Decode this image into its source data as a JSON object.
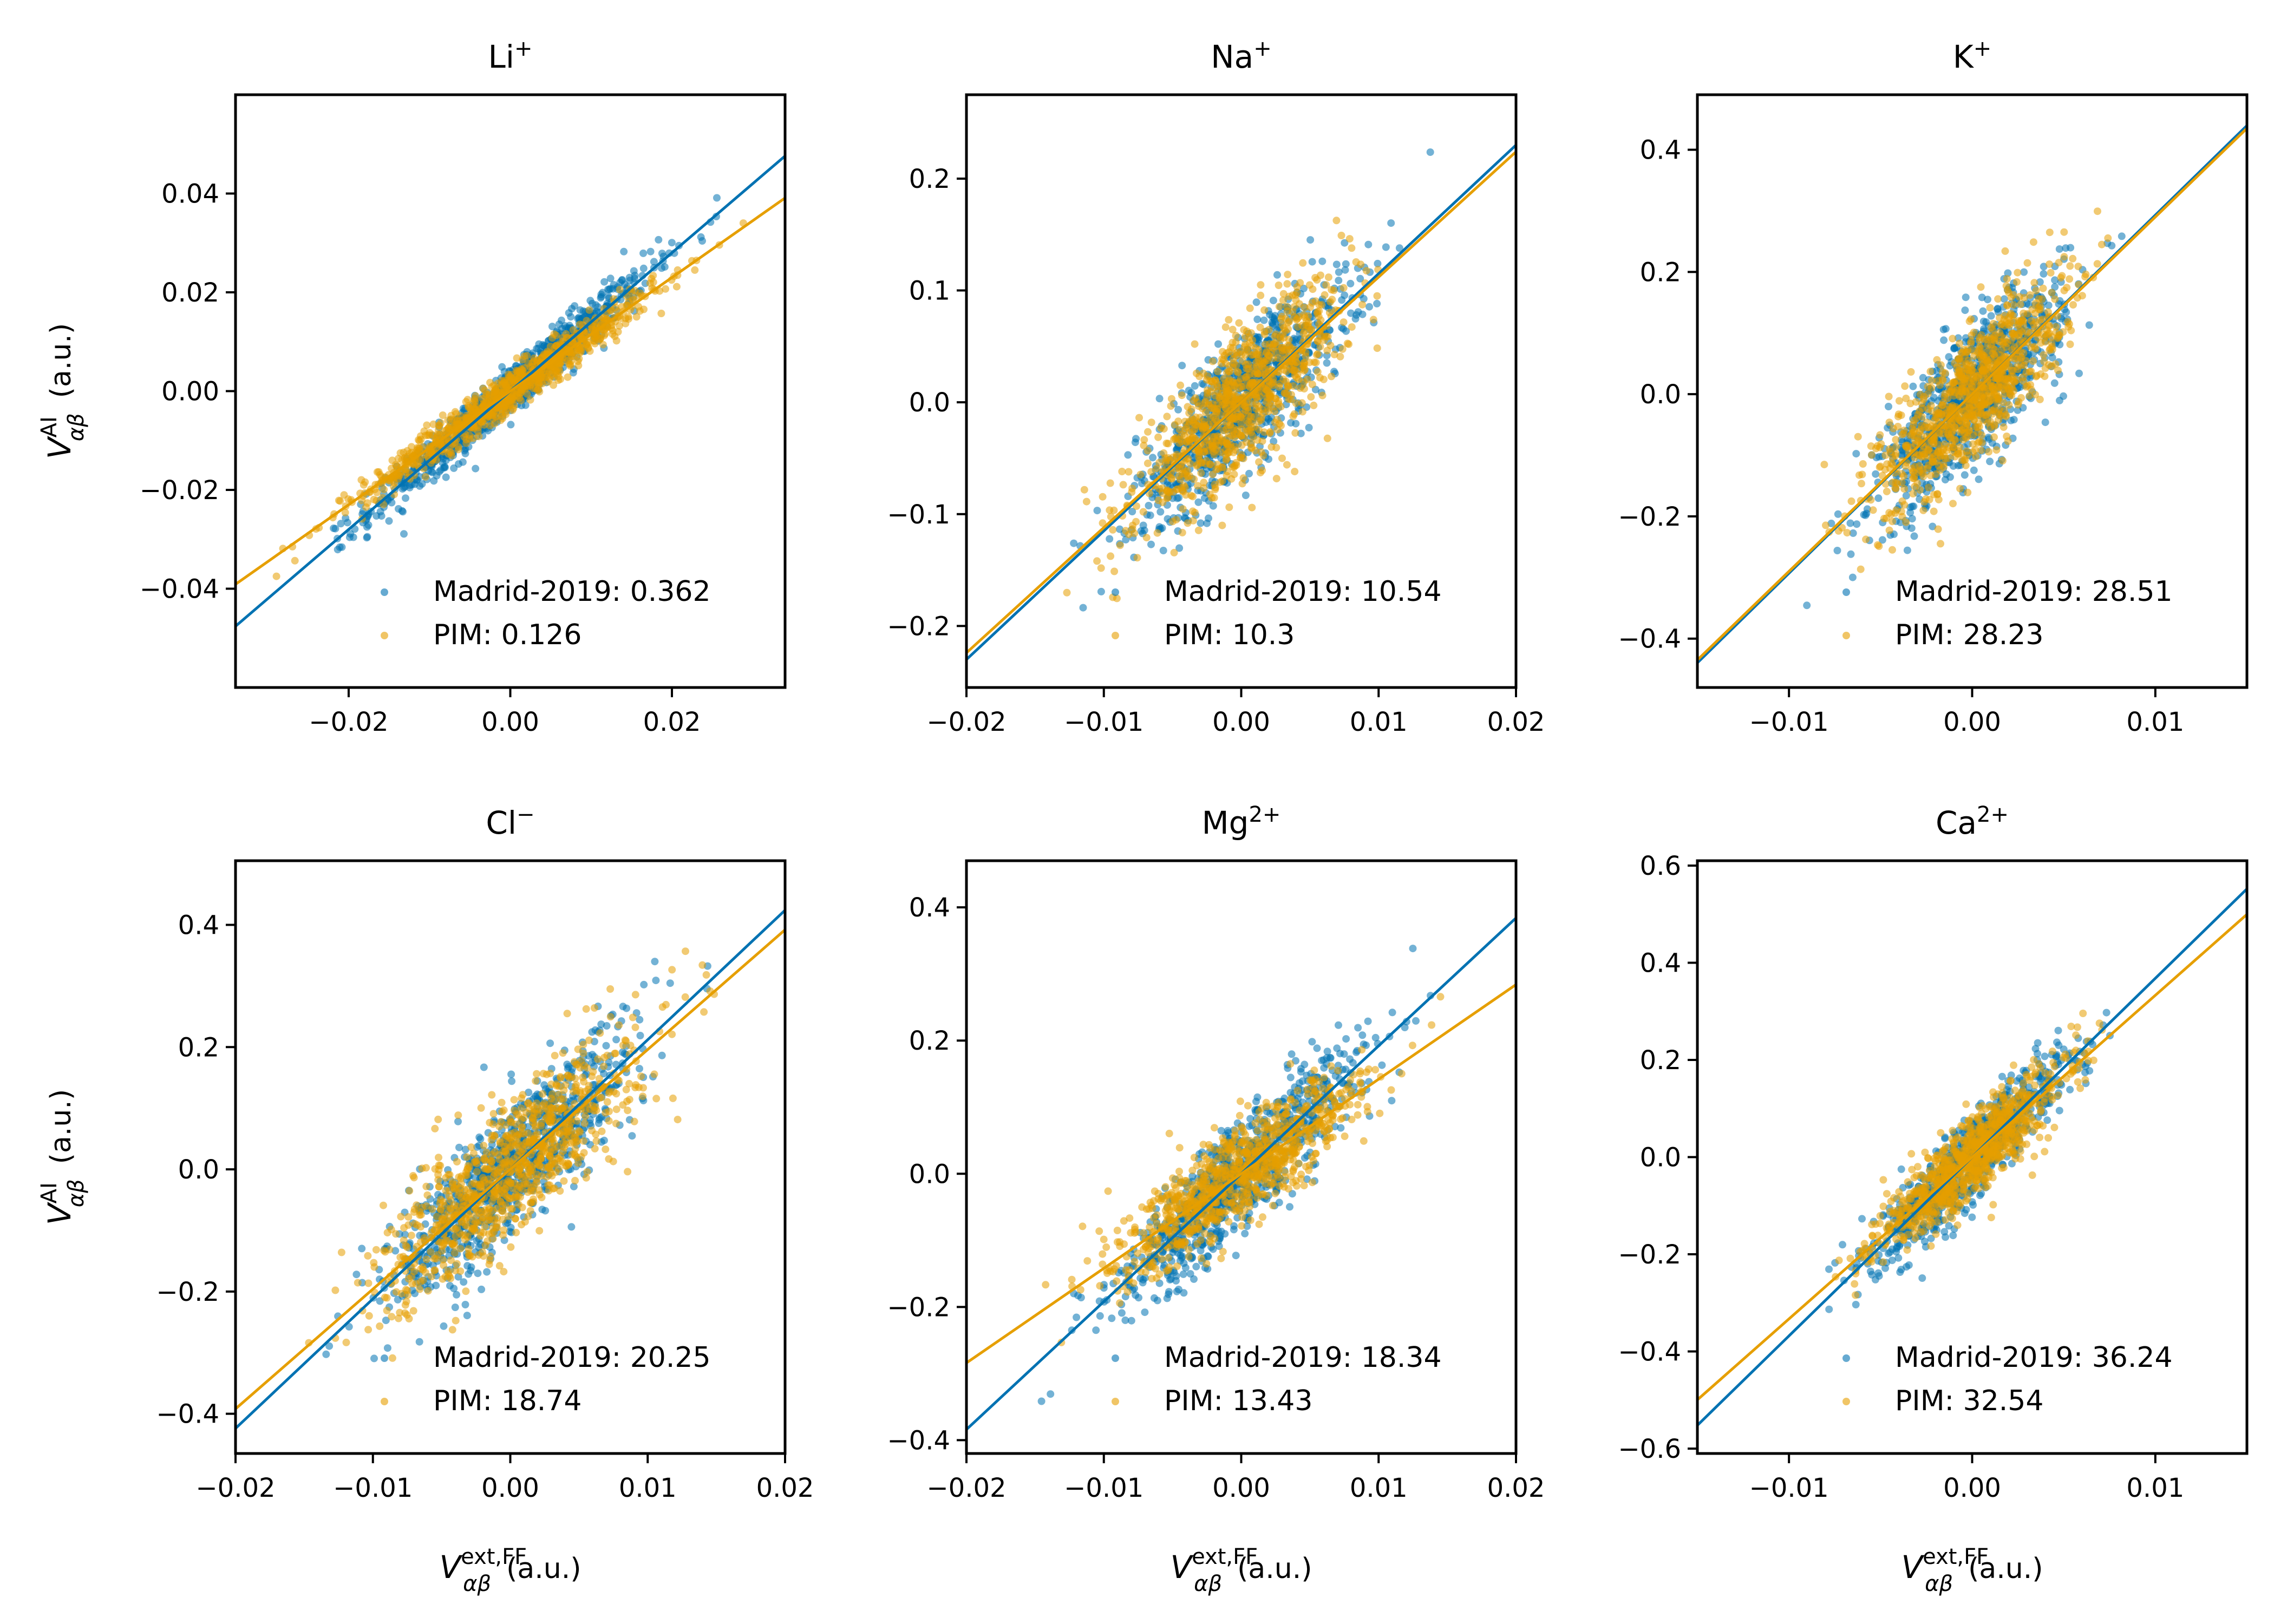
{
  "figure": {
    "colors": {
      "madrid": "#0072B2",
      "pim": "#E69F00"
    },
    "legend": {
      "series_a": "Madrid-2019",
      "series_b": "PIM"
    },
    "axis_labels": {
      "y_main": "V",
      "y_sup": "AI",
      "y_sub": "αβ",
      "y_unit": "(a.u.)",
      "x_main": "V",
      "x_sup": "ext,FF",
      "x_sub": "αβ",
      "x_unit": "(a.u.)"
    }
  },
  "chart_data": [
    {
      "type": "scatter",
      "title": "Li⁺",
      "title_base": "Li",
      "title_sup": "+",
      "xlim": [
        -0.034,
        0.034
      ],
      "ylim": [
        -0.06,
        0.06
      ],
      "xticks": [
        -0.02,
        0.0,
        0.02
      ],
      "xtick_labels": [
        "−0.02",
        "0.00",
        "0.02"
      ],
      "yticks": [
        -0.04,
        -0.02,
        0.0,
        0.02,
        0.04
      ],
      "ytick_labels": [
        "−0.04",
        "−0.02",
        "0.00",
        "0.02",
        "0.04"
      ],
      "series": [
        {
          "name": "Madrid-2019",
          "score": "0.362",
          "slope": 1.4,
          "sx": 0.0085,
          "sy": 0.0025
        },
        {
          "name": "PIM",
          "score": "0.126",
          "slope": 1.15,
          "sx": 0.009,
          "sy": 0.002
        }
      ]
    },
    {
      "type": "scatter",
      "title": "Na⁺",
      "title_base": "Na",
      "title_sup": "+",
      "xlim": [
        -0.02,
        0.02
      ],
      "ylim": [
        -0.255,
        0.275
      ],
      "xticks": [
        -0.02,
        -0.01,
        0.0,
        0.01,
        0.02
      ],
      "xtick_labels": [
        "−0.02",
        "−0.01",
        "0.00",
        "0.01",
        "0.02"
      ],
      "yticks": [
        -0.2,
        -0.1,
        0.0,
        0.1,
        0.2
      ],
      "ytick_labels": [
        "−0.2",
        "−0.1",
        "0.0",
        "0.1",
        "0.2"
      ],
      "series": [
        {
          "name": "Madrid-2019",
          "score": "10.54",
          "slope": 11.5,
          "sx": 0.0038,
          "sy": 0.03
        },
        {
          "name": "PIM",
          "score": "10.3",
          "slope": 11.2,
          "sx": 0.0038,
          "sy": 0.03
        }
      ]
    },
    {
      "type": "scatter",
      "title": "K⁺",
      "title_base": "K",
      "title_sup": "+",
      "xlim": [
        -0.015,
        0.015
      ],
      "ylim": [
        -0.48,
        0.49
      ],
      "xticks": [
        -0.01,
        0.0,
        0.01
      ],
      "xtick_labels": [
        "−0.01",
        "0.00",
        "0.01"
      ],
      "yticks": [
        -0.4,
        -0.2,
        0.0,
        0.2,
        0.4
      ],
      "ytick_labels": [
        "−0.4",
        "−0.2",
        "0.0",
        "0.2",
        "0.4"
      ],
      "series": [
        {
          "name": "Madrid-2019",
          "score": "28.51",
          "slope": 29.3,
          "sx": 0.0025,
          "sy": 0.055
        },
        {
          "name": "PIM",
          "score": "28.23",
          "slope": 29.0,
          "sx": 0.0025,
          "sy": 0.055
        }
      ]
    },
    {
      "type": "scatter",
      "title": "Cl⁻",
      "title_base": "Cl",
      "title_sup": "−",
      "xlim": [
        -0.02,
        0.02
      ],
      "ylim": [
        -0.465,
        0.505
      ],
      "xticks": [
        -0.02,
        -0.01,
        0.0,
        0.01,
        0.02
      ],
      "xtick_labels": [
        "−0.02",
        "−0.01",
        "0.00",
        "0.01",
        "0.02"
      ],
      "yticks": [
        -0.4,
        -0.2,
        0.0,
        0.2,
        0.4
      ],
      "ytick_labels": [
        "−0.4",
        "−0.2",
        "0.0",
        "0.2",
        "0.4"
      ],
      "series": [
        {
          "name": "Madrid-2019",
          "score": "20.25",
          "slope": 21.2,
          "sx": 0.0045,
          "sy": 0.055
        },
        {
          "name": "PIM",
          "score": "18.74",
          "slope": 19.6,
          "sx": 0.0045,
          "sy": 0.055
        }
      ]
    },
    {
      "type": "scatter",
      "title": "Mg²⁺",
      "title_base": "Mg",
      "title_sup": "2+",
      "xlim": [
        -0.02,
        0.02
      ],
      "ylim": [
        -0.42,
        0.47
      ],
      "xticks": [
        -0.02,
        -0.01,
        0.0,
        0.01,
        0.02
      ],
      "xtick_labels": [
        "−0.02",
        "−0.01",
        "0.00",
        "0.01",
        "0.02"
      ],
      "yticks": [
        -0.4,
        -0.2,
        0.0,
        0.2,
        0.4
      ],
      "ytick_labels": [
        "−0.4",
        "−0.2",
        "0.0",
        "0.2",
        "0.4"
      ],
      "series": [
        {
          "name": "Madrid-2019",
          "score": "18.34",
          "slope": 19.2,
          "sx": 0.0045,
          "sy": 0.04
        },
        {
          "name": "PIM",
          "score": "13.43",
          "slope": 14.2,
          "sx": 0.0045,
          "sy": 0.035
        }
      ]
    },
    {
      "type": "scatter",
      "title": "Ca²⁺",
      "title_base": "Ca",
      "title_sup": "2+",
      "xlim": [
        -0.015,
        0.015
      ],
      "ylim": [
        -0.61,
        0.61
      ],
      "xticks": [
        -0.01,
        0.0,
        0.01
      ],
      "xtick_labels": [
        "−0.01",
        "0.00",
        "0.01"
      ],
      "yticks": [
        -0.6,
        -0.4,
        -0.2,
        0.0,
        0.2,
        0.4,
        0.6
      ],
      "ytick_labels": [
        "−0.6",
        "−0.4",
        "−0.2",
        "0.0",
        "0.2",
        "0.4",
        "0.6"
      ],
      "series": [
        {
          "name": "Madrid-2019",
          "score": "36.24",
          "slope": 36.8,
          "sx": 0.0025,
          "sy": 0.04
        },
        {
          "name": "PIM",
          "score": "32.54",
          "slope": 33.3,
          "sx": 0.0025,
          "sy": 0.04
        }
      ]
    }
  ]
}
